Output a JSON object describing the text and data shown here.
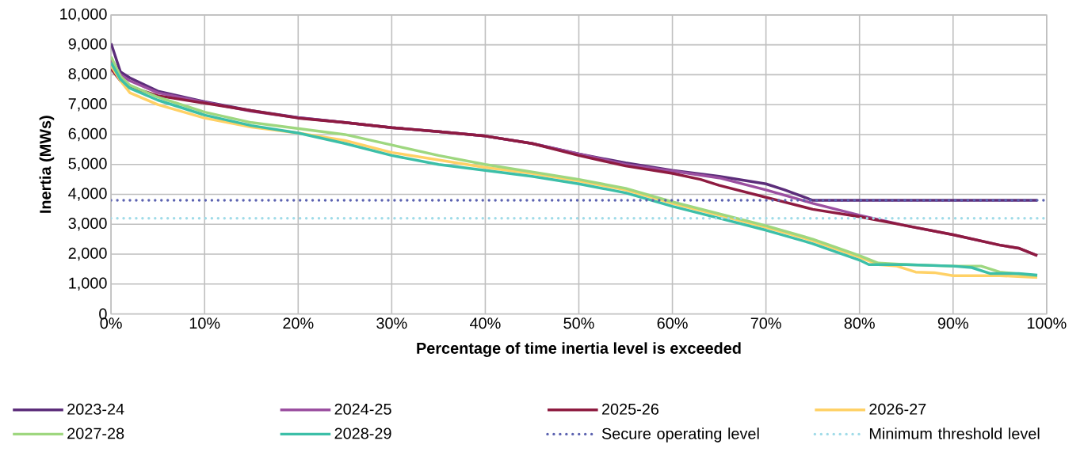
{
  "chart_data": {
    "type": "line",
    "xlabel": "Percentage of time inertia level is exceeded",
    "ylabel": "Inertia (MWs)",
    "xlim": [
      0,
      100
    ],
    "ylim": [
      0,
      10000
    ],
    "xticks": [
      {
        "value": 0,
        "label": "0%"
      },
      {
        "value": 10,
        "label": "10%"
      },
      {
        "value": 20,
        "label": "20%"
      },
      {
        "value": 30,
        "label": "30%"
      },
      {
        "value": 40,
        "label": "40%"
      },
      {
        "value": 50,
        "label": "50%"
      },
      {
        "value": 60,
        "label": "60%"
      },
      {
        "value": 70,
        "label": "70%"
      },
      {
        "value": 80,
        "label": "80%"
      },
      {
        "value": 90,
        "label": "90%"
      },
      {
        "value": 100,
        "label": "100%"
      }
    ],
    "yticks": [
      0,
      {
        "value": 1000,
        "label": "1,000"
      },
      {
        "value": 2000,
        "label": "2,000"
      },
      {
        "value": 3000,
        "label": "3,000"
      },
      {
        "value": 4000,
        "label": "4,000"
      },
      {
        "value": 5000,
        "label": "5,000"
      },
      {
        "value": 6000,
        "label": "6,000"
      },
      {
        "value": 7000,
        "label": "7,000"
      },
      {
        "value": 8000,
        "label": "8,000"
      },
      {
        "value": 9000,
        "label": "9,000"
      },
      {
        "value": 10000,
        "label": "10,000"
      }
    ],
    "grid": true,
    "legend": "bottom",
    "marker": "none",
    "line_style": "solid",
    "series": [
      {
        "name": "2023-24",
        "color": "#5c2d7a",
        "x": [
          0,
          1,
          2,
          5,
          10,
          15,
          20,
          25,
          30,
          35,
          40,
          45,
          50,
          55,
          60,
          65,
          70,
          72,
          75,
          80,
          85,
          90,
          95,
          99
        ],
        "values": [
          9050,
          8100,
          7900,
          7450,
          7100,
          6800,
          6570,
          6400,
          6230,
          6100,
          5950,
          5700,
          5350,
          5050,
          4800,
          4600,
          4350,
          4150,
          3800,
          3800,
          3800,
          3800,
          3800,
          3800
        ]
      },
      {
        "name": "2024-25",
        "color": "#9b4fa0",
        "x": [
          0,
          1,
          2,
          5,
          10,
          15,
          20,
          25,
          30,
          35,
          40,
          45,
          50,
          55,
          60,
          65,
          70,
          75,
          80,
          85,
          90,
          95,
          97,
          99
        ],
        "values": [
          8500,
          8000,
          7800,
          7400,
          7080,
          6780,
          6560,
          6400,
          6230,
          6100,
          5950,
          5700,
          5350,
          5000,
          4780,
          4550,
          4150,
          3700,
          3300,
          2950,
          2650,
          2300,
          2200,
          1950
        ]
      },
      {
        "name": "2025-26",
        "color": "#8e1b40",
        "x": [
          0,
          1,
          2,
          5,
          10,
          15,
          20,
          25,
          30,
          35,
          40,
          45,
          50,
          55,
          60,
          63,
          65,
          70,
          75,
          80,
          85,
          90,
          95,
          97,
          99
        ],
        "values": [
          8200,
          7800,
          7600,
          7300,
          7050,
          6800,
          6550,
          6400,
          6230,
          6100,
          5950,
          5700,
          5300,
          4950,
          4700,
          4500,
          4300,
          3900,
          3500,
          3250,
          2950,
          2650,
          2300,
          2200,
          1950
        ]
      },
      {
        "name": "2026-27",
        "color": "#ffd166",
        "x": [
          0,
          1,
          2,
          5,
          10,
          15,
          20,
          25,
          30,
          35,
          40,
          45,
          50,
          55,
          60,
          65,
          70,
          75,
          80,
          82,
          84,
          86,
          88,
          90,
          95,
          99
        ],
        "values": [
          8300,
          7800,
          7400,
          7000,
          6550,
          6250,
          6050,
          5800,
          5400,
          5150,
          4900,
          4700,
          4450,
          4150,
          3700,
          3300,
          2900,
          2450,
          1900,
          1650,
          1600,
          1400,
          1380,
          1280,
          1280,
          1220
        ]
      },
      {
        "name": "2027-28",
        "color": "#9ed77f",
        "x": [
          0,
          1,
          2,
          5,
          10,
          15,
          20,
          25,
          30,
          35,
          40,
          45,
          50,
          55,
          60,
          65,
          70,
          75,
          80,
          82,
          85,
          90,
          93,
          95,
          99
        ],
        "values": [
          8600,
          7950,
          7650,
          7250,
          6750,
          6400,
          6200,
          6000,
          5650,
          5300,
          5000,
          4750,
          4500,
          4200,
          3750,
          3350,
          2950,
          2500,
          1950,
          1700,
          1650,
          1600,
          1600,
          1400,
          1280
        ]
      },
      {
        "name": "2028-29",
        "color": "#3cbfa8",
        "x": [
          0,
          1,
          2,
          5,
          10,
          15,
          20,
          25,
          30,
          35,
          40,
          45,
          50,
          55,
          60,
          65,
          70,
          75,
          80,
          81,
          85,
          90,
          92,
          94,
          97,
          99
        ],
        "values": [
          8400,
          7850,
          7550,
          7150,
          6650,
          6300,
          6050,
          5700,
          5300,
          5000,
          4800,
          4600,
          4350,
          4050,
          3600,
          3200,
          2800,
          2350,
          1800,
          1650,
          1650,
          1600,
          1550,
          1350,
          1350,
          1300
        ]
      }
    ],
    "ref_lines": [
      {
        "axis": "y",
        "value": 3800,
        "label": "Secure operating level",
        "color": "#5b62b0",
        "line_style": "dotted"
      },
      {
        "axis": "y",
        "value": 3200,
        "label": "Minimum threshold level",
        "color": "#9fdbe8",
        "line_style": "dotted"
      }
    ]
  }
}
